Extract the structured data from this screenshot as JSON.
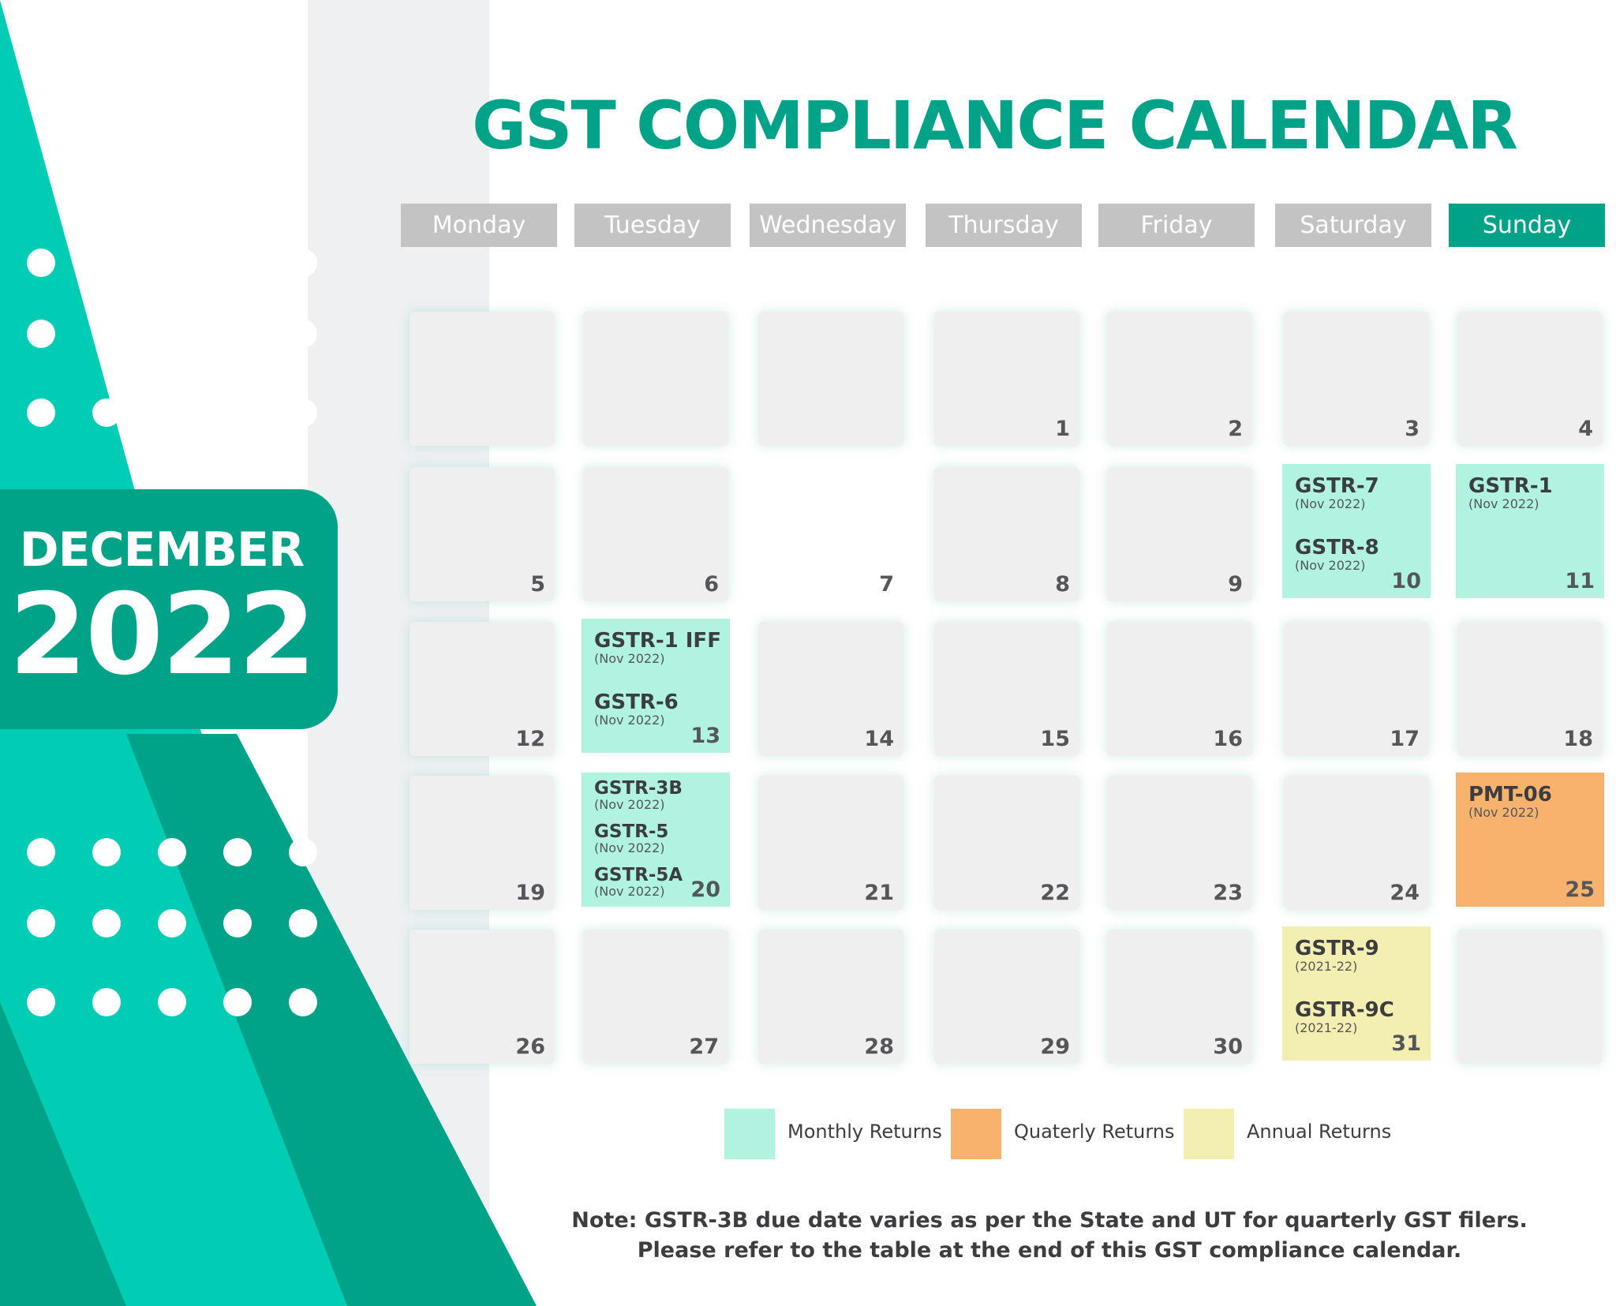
{
  "title": "GST COMPLIANCE CALENDAR",
  "month": "DECEMBER",
  "year": "2022",
  "colors": {
    "accent": "#00a387",
    "accent_light": "#00cdb4",
    "monthly": "#b0f3e0",
    "quarterly": "#f7b36d",
    "annual": "#f3efb1",
    "header_grey": "#c3c3c3",
    "cell_grey": "#efefef"
  },
  "weekdays": [
    "Monday",
    "Tuesday",
    "Wednesday",
    "Thursday",
    "Friday",
    "Saturday",
    "Sunday"
  ],
  "weeks": [
    [
      {
        "date": "",
        "type": "plain",
        "events": []
      },
      {
        "date": "",
        "type": "plain",
        "events": []
      },
      {
        "date": "",
        "type": "plain",
        "events": []
      },
      {
        "date": "1",
        "type": "plain",
        "events": []
      },
      {
        "date": "2",
        "type": "plain",
        "events": []
      },
      {
        "date": "3",
        "type": "plain",
        "events": []
      },
      {
        "date": "4",
        "type": "plain",
        "events": []
      }
    ],
    [
      {
        "date": "5",
        "type": "plain",
        "events": []
      },
      {
        "date": "6",
        "type": "plain",
        "events": []
      },
      {
        "date": "7",
        "type": "blank",
        "events": []
      },
      {
        "date": "8",
        "type": "plain",
        "events": []
      },
      {
        "date": "9",
        "type": "plain",
        "events": []
      },
      {
        "date": "10",
        "type": "monthly",
        "events": [
          {
            "name": "GSTR-7",
            "period": "(Nov 2022)"
          },
          {
            "name": "GSTR-8",
            "period": "(Nov 2022)"
          }
        ]
      },
      {
        "date": "11",
        "type": "monthly",
        "events": [
          {
            "name": "GSTR-1",
            "period": "(Nov 2022)"
          }
        ]
      }
    ],
    [
      {
        "date": "12",
        "type": "plain",
        "events": []
      },
      {
        "date": "13",
        "type": "monthly",
        "events": [
          {
            "name": "GSTR-1 IFF",
            "period": "(Nov 2022)"
          },
          {
            "name": "GSTR-6",
            "period": "(Nov 2022)"
          }
        ]
      },
      {
        "date": "14",
        "type": "plain",
        "events": []
      },
      {
        "date": "15",
        "type": "plain",
        "events": []
      },
      {
        "date": "16",
        "type": "plain",
        "events": []
      },
      {
        "date": "17",
        "type": "plain",
        "events": []
      },
      {
        "date": "18",
        "type": "plain",
        "events": []
      }
    ],
    [
      {
        "date": "19",
        "type": "plain",
        "events": []
      },
      {
        "date": "20",
        "type": "monthly",
        "events": [
          {
            "name": "GSTR-3B",
            "period": "(Nov 2022)"
          },
          {
            "name": "GSTR-5",
            "period": "(Nov 2022)"
          },
          {
            "name": "GSTR-5A",
            "period": "(Nov 2022)"
          }
        ]
      },
      {
        "date": "21",
        "type": "plain",
        "events": []
      },
      {
        "date": "22",
        "type": "plain",
        "events": []
      },
      {
        "date": "23",
        "type": "plain",
        "events": []
      },
      {
        "date": "24",
        "type": "plain",
        "events": []
      },
      {
        "date": "25",
        "type": "quarterly",
        "events": [
          {
            "name": "PMT-06",
            "period": "(Nov 2022)"
          }
        ]
      }
    ],
    [
      {
        "date": "26",
        "type": "plain",
        "events": []
      },
      {
        "date": "27",
        "type": "plain",
        "events": []
      },
      {
        "date": "28",
        "type": "plain",
        "events": []
      },
      {
        "date": "29",
        "type": "plain",
        "events": []
      },
      {
        "date": "30",
        "type": "plain",
        "events": []
      },
      {
        "date": "31",
        "type": "annual",
        "events": [
          {
            "name": "GSTR-9",
            "period": "(2021-22)"
          },
          {
            "name": "GSTR-9C",
            "period": "(2021-22)"
          }
        ]
      },
      {
        "date": "",
        "type": "plain",
        "events": []
      }
    ]
  ],
  "legend": [
    {
      "label": "Monthly Returns",
      "type": "monthly"
    },
    {
      "label": "Quaterly Returns",
      "type": "quarterly"
    },
    {
      "label": "Annual Returns",
      "type": "annual"
    }
  ],
  "note": {
    "line1": "Note: GSTR-3B due date varies as per the State and UT for quarterly GST filers.",
    "line2": "Please refer to the table at the end of this GST compliance calendar."
  }
}
